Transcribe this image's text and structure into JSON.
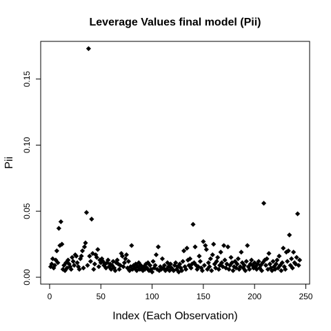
{
  "chart_data": {
    "type": "scatter",
    "title": "Leverage Values final model (Pii)",
    "x_label": "Index (Each Observation)",
    "y_label": "Pii",
    "x": [
      1,
      2,
      3,
      4,
      5,
      6,
      7,
      8,
      9,
      10,
      11,
      12,
      13,
      14,
      15,
      16,
      17,
      18,
      19,
      20,
      21,
      22,
      23,
      24,
      25,
      26,
      27,
      28,
      29,
      30,
      31,
      32,
      33,
      34,
      35,
      36,
      37,
      38,
      39,
      40,
      41,
      42,
      43,
      44,
      45,
      46,
      47,
      48,
      49,
      50,
      51,
      52,
      53,
      54,
      55,
      56,
      57,
      58,
      59,
      60,
      61,
      62,
      63,
      64,
      65,
      66,
      67,
      68,
      69,
      70,
      71,
      72,
      73,
      74,
      75,
      76,
      77,
      78,
      79,
      80,
      81,
      82,
      83,
      84,
      85,
      86,
      87,
      88,
      89,
      90,
      91,
      92,
      93,
      94,
      95,
      96,
      97,
      98,
      99,
      100,
      101,
      102,
      103,
      104,
      105,
      106,
      107,
      108,
      109,
      110,
      111,
      112,
      113,
      114,
      115,
      116,
      117,
      118,
      119,
      120,
      121,
      122,
      123,
      124,
      125,
      126,
      127,
      128,
      129,
      130,
      131,
      132,
      133,
      134,
      135,
      136,
      137,
      138,
      139,
      140,
      141,
      142,
      143,
      144,
      145,
      146,
      147,
      148,
      149,
      150,
      151,
      152,
      153,
      154,
      155,
      156,
      157,
      158,
      159,
      160,
      161,
      162,
      163,
      164,
      165,
      166,
      167,
      168,
      169,
      170,
      171,
      172,
      173,
      174,
      175,
      176,
      177,
      178,
      179,
      180,
      181,
      182,
      183,
      184,
      185,
      186,
      187,
      188,
      189,
      190,
      191,
      192,
      193,
      194,
      195,
      196,
      197,
      198,
      199,
      200,
      201,
      202,
      203,
      204,
      205,
      206,
      207,
      208,
      209,
      210,
      211,
      212,
      213,
      214,
      215,
      216,
      217,
      218,
      219,
      220,
      221,
      222,
      223,
      224,
      225,
      226,
      227,
      228,
      229,
      230,
      231,
      232,
      233,
      234,
      235,
      236,
      237,
      238,
      239,
      240,
      241,
      242,
      243,
      244
    ],
    "values": [
      0.008,
      0.01,
      0.014,
      0.007,
      0.009,
      0.013,
      0.02,
      0.011,
      0.037,
      0.024,
      0.042,
      0.025,
      0.006,
      0.009,
      0.005,
      0.011,
      0.007,
      0.013,
      0.01,
      0.008,
      0.006,
      0.015,
      0.012,
      0.009,
      0.017,
      0.016,
      0.011,
      0.008,
      0.006,
      0.014,
      0.016,
      0.02,
      0.007,
      0.023,
      0.026,
      0.049,
      0.009,
      0.173,
      0.016,
      0.012,
      0.044,
      0.018,
      0.006,
      0.01,
      0.017,
      0.015,
      0.021,
      0.008,
      0.013,
      0.011,
      0.014,
      0.012,
      0.009,
      0.01,
      0.007,
      0.011,
      0.013,
      0.008,
      0.01,
      0.006,
      0.009,
      0.012,
      0.007,
      0.005,
      0.011,
      0.013,
      0.01,
      0.006,
      0.009,
      0.018,
      0.016,
      0.008,
      0.011,
      0.014,
      0.017,
      0.007,
      0.012,
      0.005,
      0.008,
      0.024,
      0.006,
      0.009,
      0.007,
      0.01,
      0.005,
      0.008,
      0.011,
      0.006,
      0.009,
      0.007,
      0.005,
      0.008,
      0.006,
      0.01,
      0.007,
      0.011,
      0.005,
      0.009,
      0.006,
      0.004,
      0.012,
      0.007,
      0.009,
      0.017,
      0.006,
      0.023,
      0.005,
      0.008,
      0.006,
      0.014,
      0.007,
      0.009,
      0.005,
      0.006,
      0.011,
      0.008,
      0.005,
      0.01,
      0.007,
      0.006,
      0.005,
      0.009,
      0.011,
      0.006,
      0.008,
      0.004,
      0.01,
      0.007,
      0.005,
      0.012,
      0.02,
      0.008,
      0.006,
      0.022,
      0.013,
      0.009,
      0.014,
      0.007,
      0.01,
      0.04,
      0.011,
      0.023,
      0.009,
      0.006,
      0.008,
      0.016,
      0.012,
      0.007,
      0.005,
      0.027,
      0.009,
      0.024,
      0.021,
      0.006,
      0.011,
      0.008,
      0.014,
      0.005,
      0.017,
      0.025,
      0.01,
      0.007,
      0.012,
      0.015,
      0.006,
      0.009,
      0.019,
      0.011,
      0.008,
      0.024,
      0.013,
      0.007,
      0.01,
      0.023,
      0.006,
      0.009,
      0.015,
      0.011,
      0.005,
      0.008,
      0.012,
      0.007,
      0.01,
      0.014,
      0.006,
      0.008,
      0.019,
      0.011,
      0.007,
      0.009,
      0.005,
      0.012,
      0.024,
      0.008,
      0.006,
      0.01,
      0.013,
      0.009,
      0.007,
      0.011,
      0.008,
      0.006,
      0.01,
      0.012,
      0.007,
      0.009,
      0.005,
      0.011,
      0.056,
      0.013,
      0.009,
      0.014,
      0.006,
      0.018,
      0.01,
      0.007,
      0.005,
      0.012,
      0.008,
      0.006,
      0.01,
      0.013,
      0.007,
      0.016,
      0.009,
      0.005,
      0.011,
      0.022,
      0.008,
      0.006,
      0.019,
      0.012,
      0.02,
      0.032,
      0.009,
      0.014,
      0.007,
      0.019,
      0.011,
      0.01,
      0.015,
      0.048,
      0.009,
      0.013
    ],
    "color": "#000000",
    "xlim": [
      -8.72,
      253.72
    ],
    "xticks": [
      0,
      50,
      100,
      150,
      200,
      250
    ],
    "ylim": [
      -0.0052,
      0.1785
    ],
    "yticks": [
      {
        "value": 0,
        "label": "0.00"
      },
      {
        "value": 0.05,
        "label": "0.05"
      },
      {
        "value": 0.1,
        "label": "0.10"
      },
      {
        "value": 0.15,
        "label": "0.15"
      }
    ]
  }
}
